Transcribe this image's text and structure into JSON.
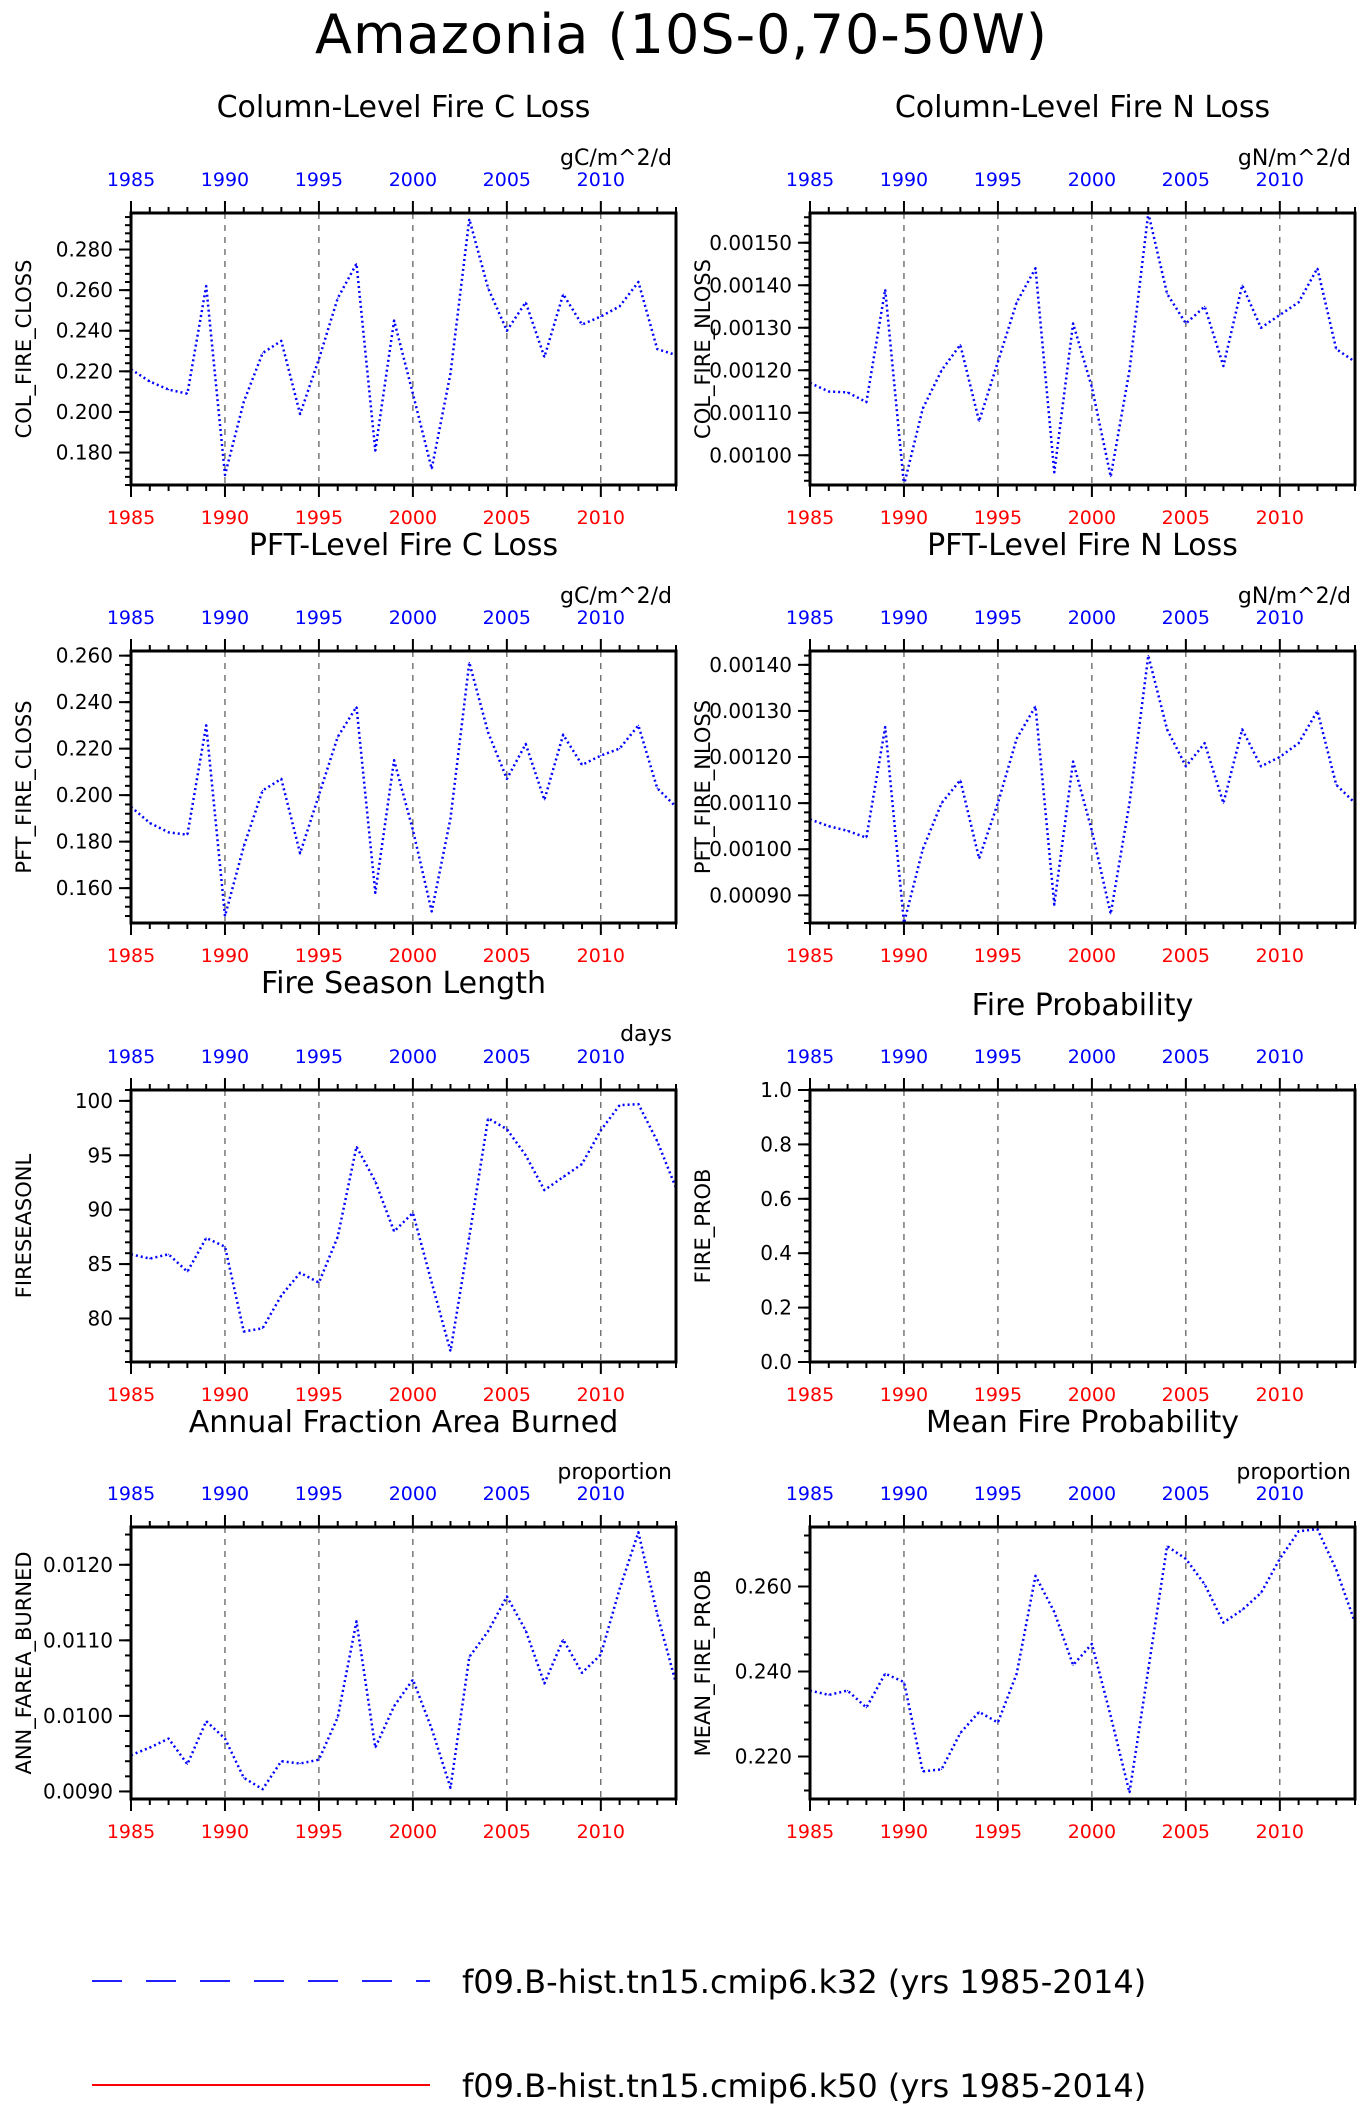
{
  "figure": {
    "title": "Amazonia (10S-0,70-50W)"
  },
  "legend": [
    {
      "label": "f09.B-hist.tn15.cmip6.k32 (yrs 1985-2014)",
      "color": "#1f1fff",
      "style": "dashed"
    },
    {
      "label": "f09.B-hist.tn15.cmip6.k50 (yrs 1985-2014)",
      "color": "#ff0000",
      "style": "solid"
    }
  ],
  "colors": {
    "series": "#0000ff",
    "top_axis": "#0000ff",
    "bottom_axis": "#ff0000"
  },
  "chart_data": [
    {
      "type": "line",
      "title": "Column-Level Fire C Loss",
      "units": "gC/m^2/d",
      "ylabel": "COL_FIRE_CLOSS",
      "xlim": [
        1985,
        2014
      ],
      "ylim": [
        0.164,
        0.298
      ],
      "yticks": [
        0.18,
        0.2,
        0.22,
        0.24,
        0.26,
        0.28
      ],
      "ytick_labels": [
        "0.180",
        "0.200",
        "0.220",
        "0.240",
        "0.260",
        "0.280"
      ],
      "xticks": [
        1985,
        1990,
        1995,
        2000,
        2005,
        2010
      ],
      "x": [
        1985,
        1986,
        1987,
        1988,
        1989,
        1990,
        1991,
        1992,
        1993,
        1994,
        1995,
        1996,
        1997,
        1998,
        1999,
        2000,
        2001,
        2002,
        2003,
        2004,
        2005,
        2006,
        2007,
        2008,
        2009,
        2010,
        2011,
        2012,
        2013,
        2014
      ],
      "series": [
        {
          "values": [
            0.221,
            0.215,
            0.211,
            0.209,
            0.262,
            0.169,
            0.205,
            0.229,
            0.235,
            0.199,
            0.226,
            0.256,
            0.273,
            0.181,
            0.245,
            0.209,
            0.172,
            0.219,
            0.295,
            0.261,
            0.24,
            0.254,
            0.227,
            0.258,
            0.243,
            0.247,
            0.252,
            0.264,
            0.231,
            0.228
          ]
        }
      ]
    },
    {
      "type": "line",
      "title": "Column-Level Fire N Loss",
      "units": "gN/m^2/d",
      "ylabel": "COL_FIRE_NLOSS",
      "xlim": [
        1985,
        2014
      ],
      "ylim": [
        0.00093,
        0.00157
      ],
      "yticks": [
        0.001,
        0.0011,
        0.0012,
        0.0013,
        0.0014,
        0.0015
      ],
      "ytick_labels": [
        "0.00100",
        "0.00110",
        "0.00120",
        "0.00130",
        "0.00140",
        "0.00150"
      ],
      "xticks": [
        1985,
        1990,
        1995,
        2000,
        2005,
        2010
      ],
      "x": [
        1985,
        1986,
        1987,
        1988,
        1989,
        1990,
        1991,
        1992,
        1993,
        1994,
        1995,
        1996,
        1997,
        1998,
        1999,
        2000,
        2001,
        2002,
        2003,
        2004,
        2005,
        2006,
        2007,
        2008,
        2009,
        2010,
        2011,
        2012,
        2013,
        2014
      ],
      "series": [
        {
          "values": [
            0.00117,
            0.00115,
            0.001148,
            0.001125,
            0.00139,
            0.00093,
            0.00111,
            0.0012,
            0.00126,
            0.00108,
            0.00122,
            0.00136,
            0.00144,
            0.00096,
            0.00131,
            0.00116,
            0.00095,
            0.0012,
            0.00157,
            0.00138,
            0.00131,
            0.00135,
            0.00121,
            0.0014,
            0.0013,
            0.00133,
            0.00136,
            0.00144,
            0.00125,
            0.00122
          ]
        }
      ]
    },
    {
      "type": "line",
      "title": "PFT-Level Fire C Loss",
      "units": "gC/m^2/d",
      "ylabel": "PFT_FIRE_CLOSS",
      "xlim": [
        1985,
        2014
      ],
      "ylim": [
        0.145,
        0.262
      ],
      "yticks": [
        0.16,
        0.18,
        0.2,
        0.22,
        0.24,
        0.26
      ],
      "ytick_labels": [
        "0.160",
        "0.180",
        "0.200",
        "0.220",
        "0.240",
        "0.260"
      ],
      "xticks": [
        1985,
        1990,
        1995,
        2000,
        2005,
        2010
      ],
      "x": [
        1985,
        1986,
        1987,
        1988,
        1989,
        1990,
        1991,
        1992,
        1993,
        1994,
        1995,
        1996,
        1997,
        1998,
        1999,
        2000,
        2001,
        2002,
        2003,
        2004,
        2005,
        2006,
        2007,
        2008,
        2009,
        2010,
        2011,
        2012,
        2013,
        2014
      ],
      "series": [
        {
          "values": [
            0.195,
            0.188,
            0.184,
            0.183,
            0.23,
            0.148,
            0.178,
            0.202,
            0.207,
            0.175,
            0.2,
            0.225,
            0.238,
            0.158,
            0.215,
            0.185,
            0.15,
            0.19,
            0.257,
            0.227,
            0.207,
            0.222,
            0.198,
            0.226,
            0.213,
            0.217,
            0.22,
            0.23,
            0.203,
            0.195
          ]
        }
      ]
    },
    {
      "type": "line",
      "title": "PFT-Level Fire N Loss",
      "units": "gN/m^2/d",
      "ylabel": "PFT_FIRE_NLOSS",
      "xlim": [
        1985,
        2014
      ],
      "ylim": [
        0.00084,
        0.00143
      ],
      "yticks": [
        0.0009,
        0.001,
        0.0011,
        0.0012,
        0.0013,
        0.0014
      ],
      "ytick_labels": [
        "0.00090",
        "0.00100",
        "0.00110",
        "0.00120",
        "0.00130",
        "0.00140"
      ],
      "xticks": [
        1985,
        1990,
        1995,
        2000,
        2005,
        2010
      ],
      "x": [
        1985,
        1986,
        1987,
        1988,
        1989,
        1990,
        1991,
        1992,
        1993,
        1994,
        1995,
        1996,
        1997,
        1998,
        1999,
        2000,
        2001,
        2002,
        2003,
        2004,
        2005,
        2006,
        2007,
        2008,
        2009,
        2010,
        2011,
        2012,
        2013,
        2014
      ],
      "series": [
        {
          "values": [
            0.001065,
            0.00105,
            0.00104,
            0.001025,
            0.001265,
            0.00084,
            0.001,
            0.0011,
            0.00115,
            0.00098,
            0.0011,
            0.00124,
            0.00131,
            0.00088,
            0.00119,
            0.00104,
            0.00086,
            0.0011,
            0.00142,
            0.00126,
            0.00118,
            0.00123,
            0.0011,
            0.00126,
            0.00118,
            0.0012,
            0.00123,
            0.0013,
            0.00114,
            0.0011
          ]
        }
      ]
    },
    {
      "type": "line",
      "title": "Fire Season Length",
      "units": "days",
      "ylabel": "FIRESEASONL",
      "xlim": [
        1985,
        2014
      ],
      "ylim": [
        76,
        101
      ],
      "yticks": [
        80,
        85,
        90,
        95,
        100
      ],
      "ytick_labels": [
        "80",
        "85",
        "90",
        "95",
        "100"
      ],
      "xticks": [
        1985,
        1990,
        1995,
        2000,
        2005,
        2010
      ],
      "x": [
        1985,
        1986,
        1987,
        1988,
        1989,
        1990,
        1991,
        1992,
        1993,
        1994,
        1995,
        1996,
        1997,
        1998,
        1999,
        2000,
        2001,
        2002,
        2003,
        2004,
        2005,
        2006,
        2007,
        2008,
        2009,
        2010,
        2011,
        2012,
        2013,
        2014
      ],
      "series": [
        {
          "values": [
            85.9,
            85.5,
            85.9,
            84.3,
            87.4,
            86.6,
            78.8,
            79.1,
            82.1,
            84.2,
            83.3,
            87.5,
            95.8,
            92.6,
            88.0,
            89.7,
            83.3,
            77.0,
            87.5,
            98.4,
            97.4,
            95.0,
            91.8,
            93.0,
            94.2,
            97.3,
            99.6,
            99.7,
            96.3,
            92.0
          ]
        }
      ]
    },
    {
      "type": "line",
      "title": "Fire Probability",
      "units": "",
      "ylabel": "FIRE_PROB",
      "xlim": [
        1985,
        2014
      ],
      "ylim": [
        0,
        1
      ],
      "yticks": [
        0,
        0.2,
        0.4,
        0.6,
        0.8,
        1.0
      ],
      "ytick_labels": [
        "0.0",
        "0.2",
        "0.4",
        "0.6",
        "0.8",
        "1.0"
      ],
      "xticks": [
        1985,
        1990,
        1995,
        2000,
        2005,
        2010
      ],
      "x": [],
      "series": [
        {
          "values": []
        }
      ]
    },
    {
      "type": "line",
      "title": "Annual Fraction Area Burned",
      "units": "proportion",
      "ylabel": "ANN_FAREA_BURNED",
      "xlim": [
        1985,
        2014
      ],
      "ylim": [
        0.0089,
        0.0125
      ],
      "yticks": [
        0.009,
        0.01,
        0.011,
        0.012
      ],
      "ytick_labels": [
        "0.0090",
        "0.0100",
        "0.0110",
        "0.0120"
      ],
      "xticks": [
        1985,
        1990,
        1995,
        2000,
        2005,
        2010
      ],
      "x": [
        1985,
        1986,
        1987,
        1988,
        1989,
        1990,
        1991,
        1992,
        1993,
        1994,
        1995,
        1996,
        1997,
        1998,
        1999,
        2000,
        2001,
        2002,
        2003,
        2004,
        2005,
        2006,
        2007,
        2008,
        2009,
        2010,
        2011,
        2012,
        2013,
        2014
      ],
      "series": [
        {
          "values": [
            0.00948,
            0.00958,
            0.0097,
            0.00936,
            0.00993,
            0.0097,
            0.00918,
            0.00903,
            0.0094,
            0.00937,
            0.00942,
            0.00998,
            0.01125,
            0.00958,
            0.01013,
            0.01048,
            0.00983,
            0.00905,
            0.01078,
            0.01112,
            0.01158,
            0.01113,
            0.01043,
            0.01101,
            0.01057,
            0.01081,
            0.01168,
            0.01243,
            0.01135,
            0.01043
          ]
        }
      ]
    },
    {
      "type": "line",
      "title": "Mean Fire Probability",
      "units": "proportion",
      "ylabel": "MEAN_FIRE_PROB",
      "xlim": [
        1985,
        2014
      ],
      "ylim": [
        0.21,
        0.274
      ],
      "yticks": [
        0.22,
        0.24,
        0.26
      ],
      "ytick_labels": [
        "0.220",
        "0.240",
        "0.260"
      ],
      "xticks": [
        1985,
        1990,
        1995,
        2000,
        2005,
        2010
      ],
      "x": [
        1985,
        1986,
        1987,
        1988,
        1989,
        1990,
        1991,
        1992,
        1993,
        1994,
        1995,
        1996,
        1997,
        1998,
        1999,
        2000,
        2001,
        2002,
        2003,
        2004,
        2005,
        2006,
        2007,
        2008,
        2009,
        2010,
        2011,
        2012,
        2013,
        2014
      ],
      "series": [
        {
          "values": [
            0.2355,
            0.2345,
            0.2355,
            0.2315,
            0.2395,
            0.2375,
            0.2165,
            0.217,
            0.2255,
            0.2305,
            0.228,
            0.2395,
            0.2625,
            0.254,
            0.2415,
            0.2465,
            0.2295,
            0.2115,
            0.2405,
            0.2695,
            0.2665,
            0.2605,
            0.2515,
            0.2545,
            0.2585,
            0.2665,
            0.273,
            0.2735,
            0.264,
            0.2515
          ]
        }
      ]
    }
  ]
}
